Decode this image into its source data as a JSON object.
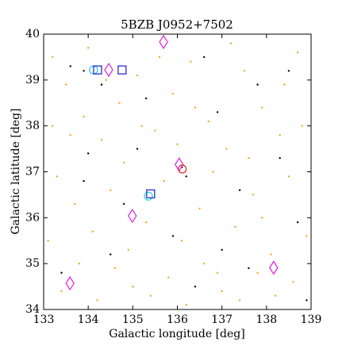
{
  "chart_data": {
    "type": "scatter",
    "title": "5BZB J0952+7502",
    "x_label": "Galactic longitude [deg]",
    "y_label": "Galactic latitude [deg]",
    "xlim": [
      133,
      139
    ],
    "ylim": [
      34,
      40
    ],
    "xticks": [
      133,
      134,
      135,
      136,
      137,
      138,
      139
    ],
    "yticks": [
      34,
      35,
      36,
      37,
      38,
      39,
      40
    ],
    "series": [
      {
        "color": "#f5a623",
        "marker": "dot",
        "x": [
          133.2,
          133.5,
          133.9,
          134.3,
          134.7,
          135.1,
          135.5,
          135.9,
          136.3,
          136.7,
          137.1,
          137.5,
          137.9,
          138.3,
          138.7,
          133.3,
          133.7,
          134.1,
          134.5,
          134.9,
          135.3,
          135.7,
          136.1,
          136.5,
          136.9,
          137.3,
          137.7,
          138.1,
          138.5,
          138.9,
          133.4,
          133.8,
          134.2,
          134.6,
          135.0,
          135.4,
          135.8,
          136.2,
          136.6,
          137.0,
          137.4,
          137.8,
          138.2,
          138.6,
          133.6,
          134.0,
          134.8,
          135.2,
          136.0,
          136.8,
          137.6,
          138.4,
          138.8,
          133.1,
          133.2,
          137.2,
          136.4,
          135.6,
          134.4,
          137.9
        ],
        "y": [
          39.5,
          38.9,
          38.2,
          37.7,
          38.5,
          39.1,
          37.9,
          38.7,
          39.4,
          38.1,
          37.5,
          39.2,
          38.4,
          37.8,
          39.6,
          36.9,
          36.3,
          35.7,
          36.6,
          35.3,
          35.9,
          36.8,
          35.5,
          36.2,
          34.8,
          35.8,
          36.5,
          35.2,
          36.9,
          35.6,
          34.4,
          35.0,
          34.2,
          34.9,
          34.5,
          34.3,
          34.7,
          34.1,
          35.0,
          34.4,
          34.2,
          34.8,
          34.3,
          34.6,
          37.8,
          39.7,
          37.2,
          38.0,
          37.6,
          37.0,
          37.3,
          38.9,
          38.0,
          35.5,
          38.0,
          39.8,
          38.4,
          39.5,
          39.0,
          36.0
        ]
      },
      {
        "color": "#000000",
        "marker": "dot",
        "x": [
          133.6,
          134.3,
          135.3,
          136.6,
          137.8,
          138.5,
          133.9,
          134.8,
          136.2,
          137.4,
          138.3,
          134.5,
          135.9,
          137.0,
          138.7,
          133.4,
          136.4,
          137.6,
          135.1,
          136.9,
          134.0,
          138.9,
          133.9,
          136.1
        ],
        "y": [
          39.3,
          38.9,
          38.6,
          39.5,
          38.9,
          39.2,
          36.8,
          36.3,
          36.9,
          36.6,
          37.3,
          35.2,
          35.6,
          35.3,
          35.9,
          34.8,
          34.5,
          34.9,
          37.5,
          38.3,
          37.4,
          34.2,
          39.2,
          37.1
        ]
      },
      {
        "color": "#e020e0",
        "marker": "diamond",
        "x": [
          134.46,
          135.69,
          136.04,
          134.99,
          133.59,
          138.16
        ],
        "y": [
          39.22,
          39.83,
          37.16,
          36.04,
          34.57,
          34.91
        ]
      },
      {
        "color": "#20d0e0",
        "marker": "circle",
        "x": [
          134.12,
          135.35
        ],
        "y": [
          39.22,
          36.47
        ]
      },
      {
        "color": "#1a1ad0",
        "marker": "square",
        "x": [
          134.21,
          134.76,
          135.4
        ],
        "y": [
          39.22,
          39.22,
          36.52
        ]
      },
      {
        "color": "#e02020",
        "marker": "circle",
        "x": [
          136.11
        ],
        "y": [
          37.06
        ]
      }
    ]
  }
}
